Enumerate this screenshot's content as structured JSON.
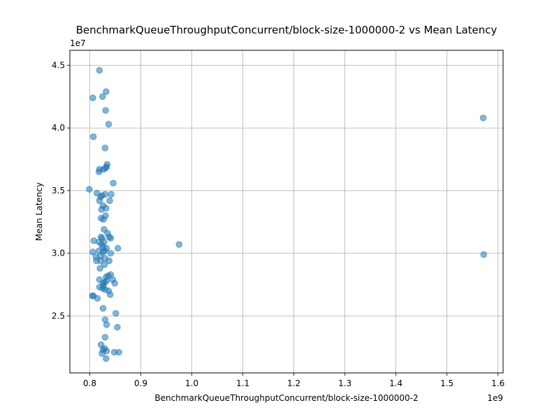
{
  "chart_data": {
    "type": "scatter",
    "title": "BenchmarkQueueThroughputConcurrent/block-size-1000000-2 vs Mean Latency",
    "xlabel": "BenchmarkQueueThroughputConcurrent/block-size-1000000-2",
    "ylabel": "Mean Latency",
    "x_offset_text": "1e9",
    "y_offset_text": "1e7",
    "xlim": [
      0.761,
      1.61
    ],
    "ylim": [
      2.045,
      4.62
    ],
    "x_scale_exp": 9,
    "y_scale_exp": 7,
    "x_ticks": [
      0.8,
      0.9,
      1.0,
      1.1,
      1.2,
      1.3,
      1.4,
      1.5,
      1.6
    ],
    "x_tick_labels": [
      "0.8",
      "0.9",
      "1.0",
      "1.1",
      "1.2",
      "1.3",
      "1.4",
      "1.5",
      "1.6"
    ],
    "y_ticks": [
      2.5,
      3.0,
      3.5,
      4.0,
      4.5
    ],
    "y_tick_labels": [
      "2.5",
      "3.0",
      "3.5",
      "4.0",
      "4.5"
    ],
    "grid": true,
    "marker_color": "#1f77b4",
    "marker_alpha": 0.55,
    "points": [
      {
        "x": 0.819,
        "y": 4.46
      },
      {
        "x": 0.832,
        "y": 4.29
      },
      {
        "x": 0.806,
        "y": 4.24
      },
      {
        "x": 0.825,
        "y": 4.25
      },
      {
        "x": 0.831,
        "y": 4.14
      },
      {
        "x": 0.837,
        "y": 4.03
      },
      {
        "x": 0.807,
        "y": 3.93
      },
      {
        "x": 0.83,
        "y": 3.84
      },
      {
        "x": 0.834,
        "y": 3.71
      },
      {
        "x": 0.833,
        "y": 3.69
      },
      {
        "x": 0.831,
        "y": 3.68
      },
      {
        "x": 0.819,
        "y": 3.67
      },
      {
        "x": 0.818,
        "y": 3.65
      },
      {
        "x": 0.827,
        "y": 3.67
      },
      {
        "x": 0.846,
        "y": 3.56
      },
      {
        "x": 0.799,
        "y": 3.51
      },
      {
        "x": 0.814,
        "y": 3.48
      },
      {
        "x": 0.83,
        "y": 3.47
      },
      {
        "x": 0.824,
        "y": 3.46
      },
      {
        "x": 0.842,
        "y": 3.47
      },
      {
        "x": 0.821,
        "y": 3.45
      },
      {
        "x": 0.819,
        "y": 3.42
      },
      {
        "x": 0.839,
        "y": 3.42
      },
      {
        "x": 0.826,
        "y": 3.38
      },
      {
        "x": 0.823,
        "y": 3.35
      },
      {
        "x": 0.832,
        "y": 3.36
      },
      {
        "x": 0.822,
        "y": 3.28
      },
      {
        "x": 0.827,
        "y": 3.27
      },
      {
        "x": 0.831,
        "y": 3.3
      },
      {
        "x": 0.828,
        "y": 3.19
      },
      {
        "x": 0.835,
        "y": 3.16
      },
      {
        "x": 0.838,
        "y": 3.13
      },
      {
        "x": 0.822,
        "y": 3.13
      },
      {
        "x": 0.824,
        "y": 3.12
      },
      {
        "x": 0.841,
        "y": 3.12
      },
      {
        "x": 0.808,
        "y": 3.1
      },
      {
        "x": 0.828,
        "y": 3.09
      },
      {
        "x": 0.818,
        "y": 3.09
      },
      {
        "x": 0.823,
        "y": 3.07
      },
      {
        "x": 0.826,
        "y": 3.05
      },
      {
        "x": 0.833,
        "y": 3.04
      },
      {
        "x": 0.855,
        "y": 3.04
      },
      {
        "x": 0.829,
        "y": 3.02
      },
      {
        "x": 0.806,
        "y": 3.01
      },
      {
        "x": 0.818,
        "y": 3.02
      },
      {
        "x": 0.826,
        "y": 3.01
      },
      {
        "x": 0.841,
        "y": 3.0
      },
      {
        "x": 0.821,
        "y": 2.98
      },
      {
        "x": 0.812,
        "y": 2.97
      },
      {
        "x": 0.83,
        "y": 2.96
      },
      {
        "x": 0.813,
        "y": 2.94
      },
      {
        "x": 0.821,
        "y": 2.94
      },
      {
        "x": 0.838,
        "y": 2.94
      },
      {
        "x": 0.829,
        "y": 2.91
      },
      {
        "x": 0.82,
        "y": 2.88
      },
      {
        "x": 0.836,
        "y": 2.82
      },
      {
        "x": 0.841,
        "y": 2.83
      },
      {
        "x": 0.832,
        "y": 2.81
      },
      {
        "x": 0.819,
        "y": 2.79
      },
      {
        "x": 0.845,
        "y": 2.79
      },
      {
        "x": 0.833,
        "y": 2.78
      },
      {
        "x": 0.829,
        "y": 2.77
      },
      {
        "x": 0.826,
        "y": 2.76
      },
      {
        "x": 0.849,
        "y": 2.76
      },
      {
        "x": 0.827,
        "y": 2.74
      },
      {
        "x": 0.825,
        "y": 2.72
      },
      {
        "x": 0.819,
        "y": 2.73
      },
      {
        "x": 0.83,
        "y": 2.71
      },
      {
        "x": 0.837,
        "y": 2.7
      },
      {
        "x": 0.84,
        "y": 2.67
      },
      {
        "x": 0.805,
        "y": 2.66
      },
      {
        "x": 0.807,
        "y": 2.66
      },
      {
        "x": 0.815,
        "y": 2.64
      },
      {
        "x": 0.826,
        "y": 2.56
      },
      {
        "x": 0.851,
        "y": 2.52
      },
      {
        "x": 0.83,
        "y": 2.47
      },
      {
        "x": 0.833,
        "y": 2.43
      },
      {
        "x": 0.854,
        "y": 2.41
      },
      {
        "x": 0.83,
        "y": 2.33
      },
      {
        "x": 0.822,
        "y": 2.27
      },
      {
        "x": 0.829,
        "y": 2.24
      },
      {
        "x": 0.826,
        "y": 2.23
      },
      {
        "x": 0.833,
        "y": 2.22
      },
      {
        "x": 0.824,
        "y": 2.2
      },
      {
        "x": 0.848,
        "y": 2.21
      },
      {
        "x": 0.857,
        "y": 2.21
      },
      {
        "x": 0.832,
        "y": 2.16
      },
      {
        "x": 0.975,
        "y": 3.07
      },
      {
        "x": 1.571,
        "y": 4.08
      },
      {
        "x": 1.572,
        "y": 2.99
      }
    ]
  }
}
